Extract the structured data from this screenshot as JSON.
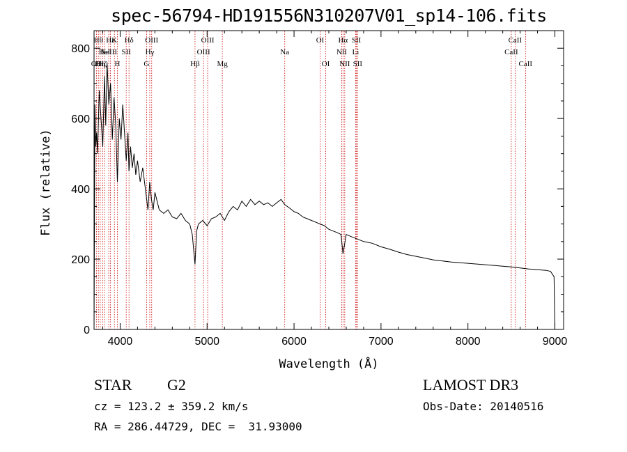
{
  "chart_data": {
    "type": "line",
    "title": "spec-56794-HD191556N310207V01_sp14-106.fits",
    "xlabel": "Wavelength (Å)",
    "ylabel": "Flux (relative)",
    "xlim": [
      3700,
      9100
    ],
    "ylim": [
      0,
      850
    ],
    "x_ticks": [
      4000,
      5000,
      6000,
      7000,
      8000,
      9000
    ],
    "y_ticks": [
      0,
      200,
      400,
      600,
      800
    ],
    "series": [
      {
        "name": "spectrum",
        "x": [
          3700,
          3710,
          3720,
          3730,
          3740,
          3760,
          3780,
          3800,
          3820,
          3835,
          3850,
          3870,
          3890,
          3910,
          3930,
          3950,
          3968,
          3990,
          4010,
          4030,
          4050,
          4070,
          4090,
          4101,
          4120,
          4140,
          4160,
          4180,
          4200,
          4230,
          4260,
          4300,
          4320,
          4340,
          4360,
          4380,
          4400,
          4450,
          4500,
          4550,
          4600,
          4650,
          4700,
          4750,
          4800,
          4830,
          4861,
          4880,
          4900,
          4950,
          5000,
          5050,
          5100,
          5150,
          5200,
          5250,
          5300,
          5350,
          5400,
          5450,
          5500,
          5550,
          5600,
          5650,
          5700,
          5750,
          5800,
          5850,
          5893,
          5950,
          6000,
          6050,
          6100,
          6150,
          6200,
          6250,
          6300,
          6350,
          6400,
          6450,
          6500,
          6540,
          6563,
          6600,
          6650,
          6700,
          6750,
          6800,
          6900,
          7000,
          7100,
          7200,
          7300,
          7400,
          7500,
          7600,
          7700,
          7800,
          7900,
          8000,
          8100,
          8200,
          8300,
          8400,
          8500,
          8600,
          8700,
          8800,
          8900,
          8950,
          8990,
          9000
        ],
        "y": [
          0,
          640,
          520,
          560,
          500,
          680,
          600,
          520,
          720,
          580,
          760,
          640,
          700,
          540,
          660,
          580,
          420,
          600,
          540,
          640,
          560,
          480,
          560,
          450,
          520,
          460,
          500,
          440,
          480,
          420,
          460,
          380,
          340,
          420,
          370,
          340,
          390,
          340,
          330,
          340,
          320,
          315,
          330,
          310,
          300,
          270,
          185,
          280,
          300,
          310,
          295,
          315,
          320,
          330,
          310,
          335,
          350,
          340,
          365,
          350,
          370,
          355,
          365,
          355,
          360,
          350,
          360,
          370,
          355,
          345,
          335,
          330,
          320,
          315,
          310,
          305,
          300,
          295,
          285,
          280,
          275,
          270,
          215,
          270,
          265,
          260,
          255,
          250,
          245,
          235,
          228,
          220,
          213,
          208,
          203,
          198,
          195,
          192,
          190,
          188,
          186,
          184,
          182,
          180,
          178,
          175,
          172,
          170,
          168,
          165,
          150,
          0
        ]
      }
    ],
    "lines": [
      {
        "x": 3727,
        "label": "OII",
        "row": 2
      },
      {
        "x": 3750,
        "label": "Hθ",
        "row": 0
      },
      {
        "x": 3771,
        "label": "Hη",
        "row": 2
      },
      {
        "x": 3798,
        "label": "Hζ",
        "row": 2
      },
      {
        "x": 3820,
        "label": "HeI",
        "row": 1
      },
      {
        "x": 3869,
        "label": "NeIII",
        "row": 1
      },
      {
        "x": 3889,
        "label": "Hε",
        "row": 0
      },
      {
        "x": 3934,
        "label": "K",
        "row": 0
      },
      {
        "x": 3968,
        "label": "H",
        "row": 2
      },
      {
        "x": 4070,
        "label": "SII",
        "row": 1
      },
      {
        "x": 4102,
        "label": "Hδ",
        "row": 0
      },
      {
        "x": 4304,
        "label": "G",
        "row": 2
      },
      {
        "x": 4341,
        "label": "Hγ",
        "row": 1
      },
      {
        "x": 4363,
        "label": "OIII",
        "row": 0
      },
      {
        "x": 4861,
        "label": "Hβ",
        "row": 2
      },
      {
        "x": 4959,
        "label": "OIII",
        "row": 1
      },
      {
        "x": 5007,
        "label": "OIII",
        "row": 0
      },
      {
        "x": 5175,
        "label": "Mg",
        "row": 2
      },
      {
        "x": 5893,
        "label": "Na",
        "row": 1
      },
      {
        "x": 6300,
        "label": "OI",
        "row": 0
      },
      {
        "x": 6364,
        "label": "OI",
        "row": 2
      },
      {
        "x": 6548,
        "label": "NII",
        "row": 1
      },
      {
        "x": 6563,
        "label": "Hα",
        "row": 0
      },
      {
        "x": 6583,
        "label": "NII",
        "row": 2
      },
      {
        "x": 6708,
        "label": "Li",
        "row": 1
      },
      {
        "x": 6717,
        "label": "SII",
        "row": 0
      },
      {
        "x": 6731,
        "label": "SII",
        "row": 2
      },
      {
        "x": 8498,
        "label": "CaII",
        "row": 1
      },
      {
        "x": 8542,
        "label": "CaII",
        "row": 0
      },
      {
        "x": 8662,
        "label": "CaII",
        "row": 2
      }
    ],
    "legend": "none",
    "grid": false
  },
  "info": {
    "object_class": "STAR",
    "subclass": "G2",
    "redshift": "cz = 123.2 ± 359.2 km/s",
    "coords": "RA = 286.44729, DEC =  31.93000",
    "survey": "LAMOST DR3",
    "obs_date": "Obs-Date: 20140516"
  },
  "colors": {
    "line_marker": "#cc0000",
    "spectrum": "#000000"
  }
}
